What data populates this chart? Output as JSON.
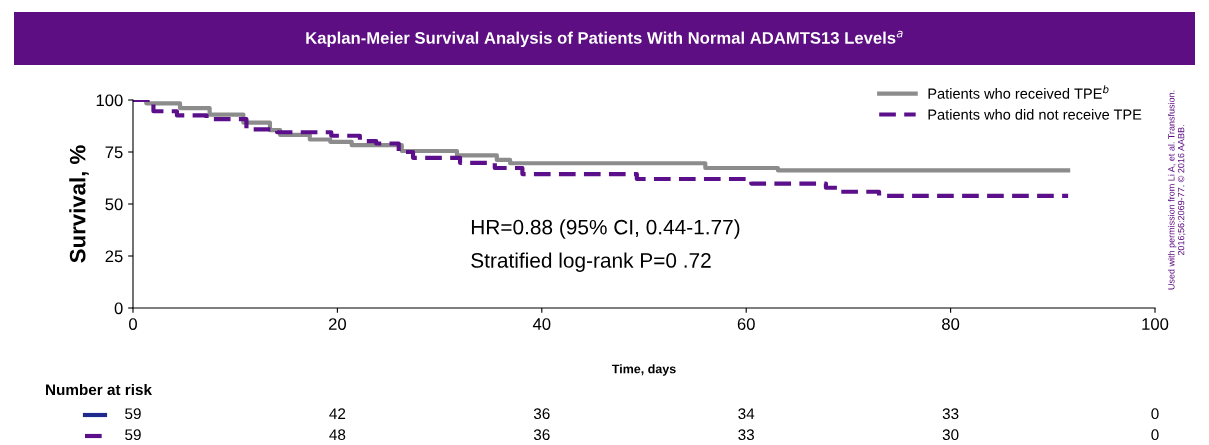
{
  "chart_data": {
    "type": "step",
    "title": "Kaplan-Meier Survival Analysis of Patients With Normal ADAMTS13 Levels$^{a}$",
    "xlabel": "Time, days",
    "ylabel": "Survival, %",
    "xlim": [
      0,
      100
    ],
    "xticks": [
      0,
      20,
      40,
      60,
      80,
      100
    ],
    "ylim": [
      0,
      100
    ],
    "yticks": [
      0,
      25,
      50,
      75,
      100
    ],
    "grid": false,
    "legend": "top right",
    "marker": "none",
    "series": [
      {
        "name": "Patients who received TPE$^{b}$",
        "color": "#8c8c8c",
        "line_style": "solid",
        "x": [
          0,
          1.3,
          4.6,
          7.5,
          10.8,
          13.4,
          14.4,
          17.3,
          19.3,
          21.4,
          26.3,
          31.7,
          35.6,
          36.9,
          56,
          63.1,
          91.5
        ],
        "values": [
          100,
          98.4,
          96.1,
          93,
          89.1,
          85.5,
          83.2,
          81,
          79.9,
          78.3,
          75.5,
          73.4,
          71.2,
          69.6,
          67.3,
          66.2,
          66.2
        ]
      },
      {
        "name": "Patients who did not receive TPE",
        "color": "#5b0f8b",
        "line_style": "dashed",
        "x": [
          0,
          2,
          4.3,
          7.2,
          11.1,
          14.1,
          19.4,
          22.2,
          23.8,
          26,
          27.4,
          32,
          35.4,
          38.1,
          49.3,
          60.5,
          67.8,
          69.1,
          73,
          91.5
        ],
        "values": [
          100,
          94.6,
          92.6,
          90.8,
          85.9,
          84.5,
          82.8,
          80.2,
          79.1,
          75,
          72.2,
          69.8,
          67.3,
          64.4,
          62,
          59.8,
          57.8,
          55.9,
          53.9,
          53.9
        ]
      }
    ],
    "annotations": [
      "HR=0.88 (95% CI, 0.44-1.77)",
      "Stratified log-rank P=0 .72",
      "Number at risk",
      "Used with permission from Li A, et al. Transfusion.\n2016;56:2069-77. © 2016 AABB.",
      "59",
      "42",
      "36",
      "34",
      "33",
      "0",
      "59",
      "48",
      "36",
      "33",
      "30",
      "0"
    ]
  }
}
